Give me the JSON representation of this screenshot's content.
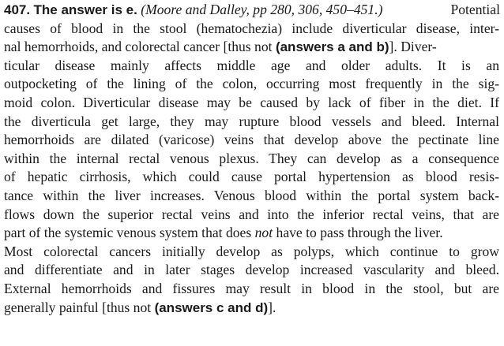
{
  "answer": {
    "number": "407.",
    "heading": "The answer is e.",
    "citation": "(Moore and Dalley, pp 280, 306, 450–451.)",
    "lines": [
      "Potential",
      "causes of blood in the stool (hematochezia) include diverticular disease, inter-",
      "nal hemorrhoids, and colorectal cancer [thus not",
      "(answers a and b)",
      "]. Diver-",
      "ticular disease mainly affects middle age and older adults. It is an",
      "outpocketing of the lining of the colon, occurring most frequently in the sig-",
      "moid colon. Diverticular disease may be caused by lack of fiber in the diet. If",
      "the diverticula get large, they may rupture blood vessels and bleed. Internal",
      "hemorrhoids are dilated (varicose) veins that develop above the pectinate line",
      "within the internal rectal venous plexus. They can develop as a consequence",
      "of hepatic cirrhosis, which could cause portal hypertension as blood resis-",
      "tance within the liver increases. Venous blood within the portal system back-",
      "flows down the superior rectal veins and into the inferior rectal veins, that are",
      "part of the systemic venous system that does",
      "not",
      "have to pass through the liver.",
      "Most colorectal cancers initially develop as polyps, which continue to grow",
      "and differentiate and in later stages develop increased vascularity and bleed.",
      "External hemorrhoids and fissures may result in blood in the stool, but are",
      "generally painful [thus not",
      "(answers c and d)",
      "]."
    ]
  }
}
